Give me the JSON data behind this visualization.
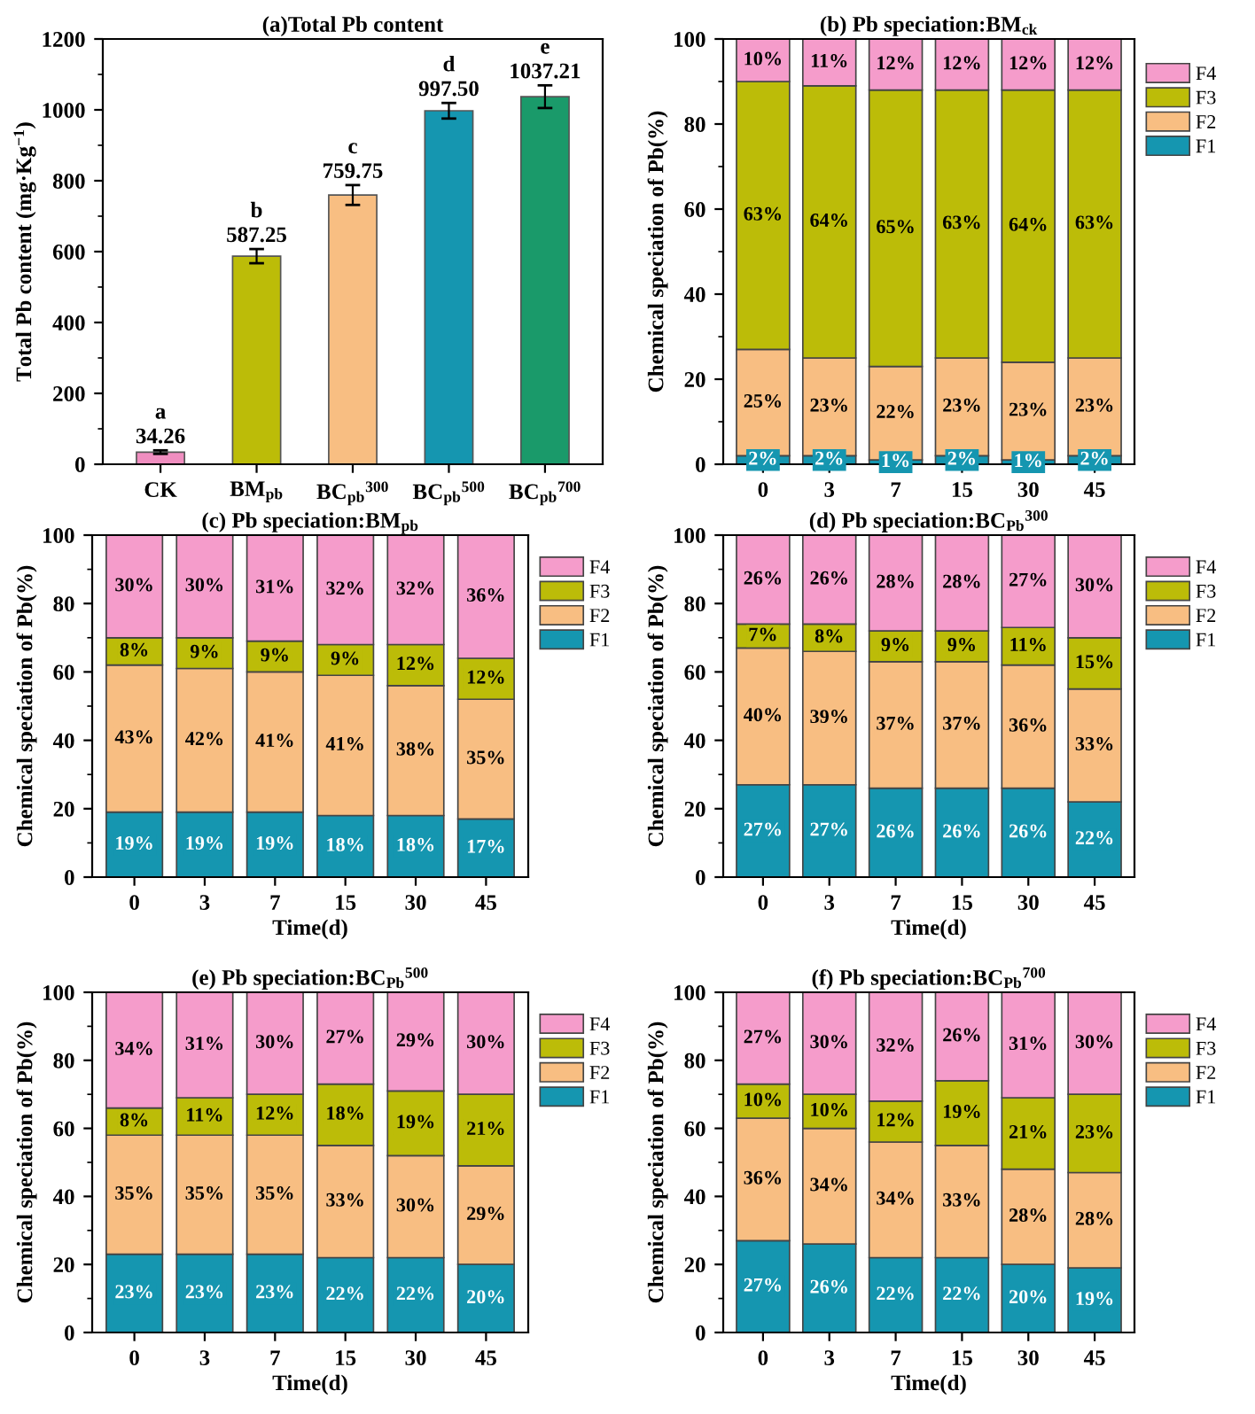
{
  "chart_data": [
    {
      "type": "bar",
      "title": "(a)Total Pb content",
      "ylabel": "Total Pb content (mg·Kg$^{−1}$)",
      "categories": [
        "CK",
        "BM$_{pb}$",
        "BC$_{pb}$$^{300}$",
        "BC$_{pb}$$^{500}$",
        "BC$_{pb}$$^{700}$"
      ],
      "values": [
        34.26,
        587.25,
        759.75,
        997.5,
        1037.21
      ],
      "value_labels": [
        "34.26",
        "587.25",
        "759.75",
        "997.50",
        "1037.21"
      ],
      "errors": [
        5,
        20,
        28,
        22,
        32
      ],
      "colors": [
        "#f08ec0",
        "#bcbc08",
        "#f8be82",
        "#1596b0",
        "#1a9a6a"
      ],
      "ylim": [
        0,
        1200
      ],
      "yticks": [
        0,
        200,
        400,
        600,
        800,
        1000,
        1200
      ],
      "annotations": [
        {
          "text": "a",
          "x": "CK",
          "y": 34.26
        },
        {
          "text": "b",
          "x": "BM$_{pb}$",
          "y": 587.25
        },
        {
          "text": "c",
          "x": "BC$_{pb}$$^{300}$",
          "y": 759.75
        },
        {
          "text": "d",
          "x": "BC$_{pb}$$^{500}$",
          "y": 997.5
        },
        {
          "text": "e",
          "x": "BC$_{pb}$$^{700}$",
          "y": 1037.21
        }
      ]
    },
    {
      "type": "bar",
      "stacked": true,
      "title": "(b) Pb speciation:BM$_{ck}$",
      "ylabel": "Chemical speciation of Pb(%)",
      "legend": "right",
      "categories": [
        "0",
        "3",
        "7",
        "15",
        "30",
        "45"
      ],
      "ylim": [
        0,
        100
      ],
      "yticks": [
        0,
        20,
        40,
        60,
        80,
        100
      ],
      "series": [
        {
          "name": "F1",
          "color": "#1596b0",
          "values": [
            2,
            2,
            1,
            2,
            1,
            2
          ],
          "value_labels": [
            "2%",
            "2%",
            "1%",
            "2%",
            "1%",
            "2%"
          ]
        },
        {
          "name": "F2",
          "color": "#f8be82",
          "values": [
            25,
            23,
            22,
            23,
            23,
            23
          ],
          "value_labels": [
            "25%",
            "23%",
            "22%",
            "23%",
            "23%",
            "23%"
          ]
        },
        {
          "name": "F3",
          "color": "#bcbc08",
          "values": [
            63,
            64,
            65,
            63,
            64,
            63
          ],
          "value_labels": [
            "63%",
            "64%",
            "65%",
            "63%",
            "64%",
            "63%"
          ]
        },
        {
          "name": "F4",
          "color": "#f59ccb",
          "values": [
            10,
            11,
            12,
            12,
            12,
            12
          ],
          "value_labels": [
            "10%",
            "11%",
            "12%",
            "12%",
            "12%",
            "12%"
          ]
        }
      ]
    },
    {
      "type": "bar",
      "stacked": true,
      "title": "(c) Pb speciation:BM$_{pb}$",
      "xlabel": "Time(d)",
      "ylabel": "Chemical speciation of Pb(%)",
      "legend": "right",
      "categories": [
        "0",
        "3",
        "7",
        "15",
        "30",
        "45"
      ],
      "ylim": [
        0,
        100
      ],
      "yticks": [
        0,
        20,
        40,
        60,
        80,
        100
      ],
      "series": [
        {
          "name": "F1",
          "color": "#1596b0",
          "values": [
            19,
            19,
            19,
            18,
            18,
            17
          ],
          "value_labels": [
            "19%",
            "19%",
            "19%",
            "18%",
            "18%",
            "17%"
          ]
        },
        {
          "name": "F2",
          "color": "#f8be82",
          "values": [
            43,
            42,
            41,
            41,
            38,
            35
          ],
          "value_labels": [
            "43%",
            "42%",
            "41%",
            "41%",
            "38%",
            "35%"
          ]
        },
        {
          "name": "F3",
          "color": "#bcbc08",
          "values": [
            8,
            9,
            9,
            9,
            12,
            12
          ],
          "value_labels": [
            "8%",
            "9%",
            "9%",
            "9%",
            "12%",
            "12%"
          ]
        },
        {
          "name": "F4",
          "color": "#f59ccb",
          "values": [
            30,
            30,
            31,
            32,
            32,
            36
          ],
          "value_labels": [
            "30%",
            "30%",
            "31%",
            "32%",
            "32%",
            "36%"
          ]
        }
      ]
    },
    {
      "type": "bar",
      "stacked": true,
      "title": "(d) Pb speciation:BC$_{Pb}$$^{300}$",
      "xlabel": "Time(d)",
      "ylabel": "Chemical speciation of Pb(%)",
      "legend": "right",
      "categories": [
        "0",
        "3",
        "7",
        "15",
        "30",
        "45"
      ],
      "ylim": [
        0,
        100
      ],
      "yticks": [
        0,
        20,
        40,
        60,
        80,
        100
      ],
      "series": [
        {
          "name": "F1",
          "color": "#1596b0",
          "values": [
            27,
            27,
            26,
            26,
            26,
            22
          ],
          "value_labels": [
            "27%",
            "27%",
            "26%",
            "26%",
            "26%",
            "22%"
          ]
        },
        {
          "name": "F2",
          "color": "#f8be82",
          "values": [
            40,
            39,
            37,
            37,
            36,
            33
          ],
          "value_labels": [
            "40%",
            "39%",
            "37%",
            "37%",
            "36%",
            "33%"
          ]
        },
        {
          "name": "F3",
          "color": "#bcbc08",
          "values": [
            7,
            8,
            9,
            9,
            11,
            15
          ],
          "value_labels": [
            "7%",
            "8%",
            "9%",
            "9%",
            "11%",
            "15%"
          ]
        },
        {
          "name": "F4",
          "color": "#f59ccb",
          "values": [
            26,
            26,
            28,
            28,
            27,
            30
          ],
          "value_labels": [
            "26%",
            "26%",
            "28%",
            "28%",
            "27%",
            "30%"
          ]
        }
      ]
    },
    {
      "type": "bar",
      "stacked": true,
      "title": "(e) Pb speciation:BC$_{Pb}$$^{500}$",
      "xlabel": "Time(d)",
      "ylabel": "Chemical speciation of Pb(%)",
      "legend": "right",
      "categories": [
        "0",
        "3",
        "7",
        "15",
        "30",
        "45"
      ],
      "ylim": [
        0,
        100
      ],
      "yticks": [
        0,
        20,
        40,
        60,
        80,
        100
      ],
      "series": [
        {
          "name": "F1",
          "color": "#1596b0",
          "values": [
            23,
            23,
            23,
            22,
            22,
            20
          ],
          "value_labels": [
            "23%",
            "23%",
            "23%",
            "22%",
            "22%",
            "20%"
          ]
        },
        {
          "name": "F2",
          "color": "#f8be82",
          "values": [
            35,
            35,
            35,
            33,
            30,
            29
          ],
          "value_labels": [
            "35%",
            "35%",
            "35%",
            "33%",
            "30%",
            "29%"
          ]
        },
        {
          "name": "F3",
          "color": "#bcbc08",
          "values": [
            8,
            11,
            12,
            18,
            19,
            21
          ],
          "value_labels": [
            "8%",
            "11%",
            "12%",
            "18%",
            "19%",
            "21%"
          ]
        },
        {
          "name": "F4",
          "color": "#f59ccb",
          "values": [
            34,
            31,
            30,
            27,
            29,
            30
          ],
          "value_labels": [
            "34%",
            "31%",
            "30%",
            "27%",
            "29%",
            "30%"
          ]
        }
      ]
    },
    {
      "type": "bar",
      "stacked": true,
      "title": "(f) Pb speciation:BC$_{Pb}$$^{700}$",
      "xlabel": "Time(d)",
      "ylabel": "Chemical speciation of Pb(%)",
      "legend": "right",
      "categories": [
        "0",
        "3",
        "7",
        "15",
        "30",
        "45"
      ],
      "ylim": [
        0,
        100
      ],
      "yticks": [
        0,
        20,
        40,
        60,
        80,
        100
      ],
      "series": [
        {
          "name": "F1",
          "color": "#1596b0",
          "values": [
            27,
            26,
            22,
            22,
            20,
            19
          ],
          "value_labels": [
            "27%",
            "26%",
            "22%",
            "22%",
            "20%",
            "19%"
          ]
        },
        {
          "name": "F2",
          "color": "#f8be82",
          "values": [
            36,
            34,
            34,
            33,
            28,
            28
          ],
          "value_labels": [
            "36%",
            "34%",
            "34%",
            "33%",
            "28%",
            "28%"
          ]
        },
        {
          "name": "F3",
          "color": "#bcbc08",
          "values": [
            10,
            10,
            12,
            19,
            21,
            23
          ],
          "value_labels": [
            "10%",
            "10%",
            "12%",
            "19%",
            "21%",
            "23%"
          ]
        },
        {
          "name": "F4",
          "color": "#f59ccb",
          "values": [
            27,
            30,
            32,
            26,
            31,
            30
          ],
          "value_labels": [
            "27%",
            "30%",
            "32%",
            "26%",
            "31%",
            "30%"
          ]
        }
      ]
    }
  ]
}
